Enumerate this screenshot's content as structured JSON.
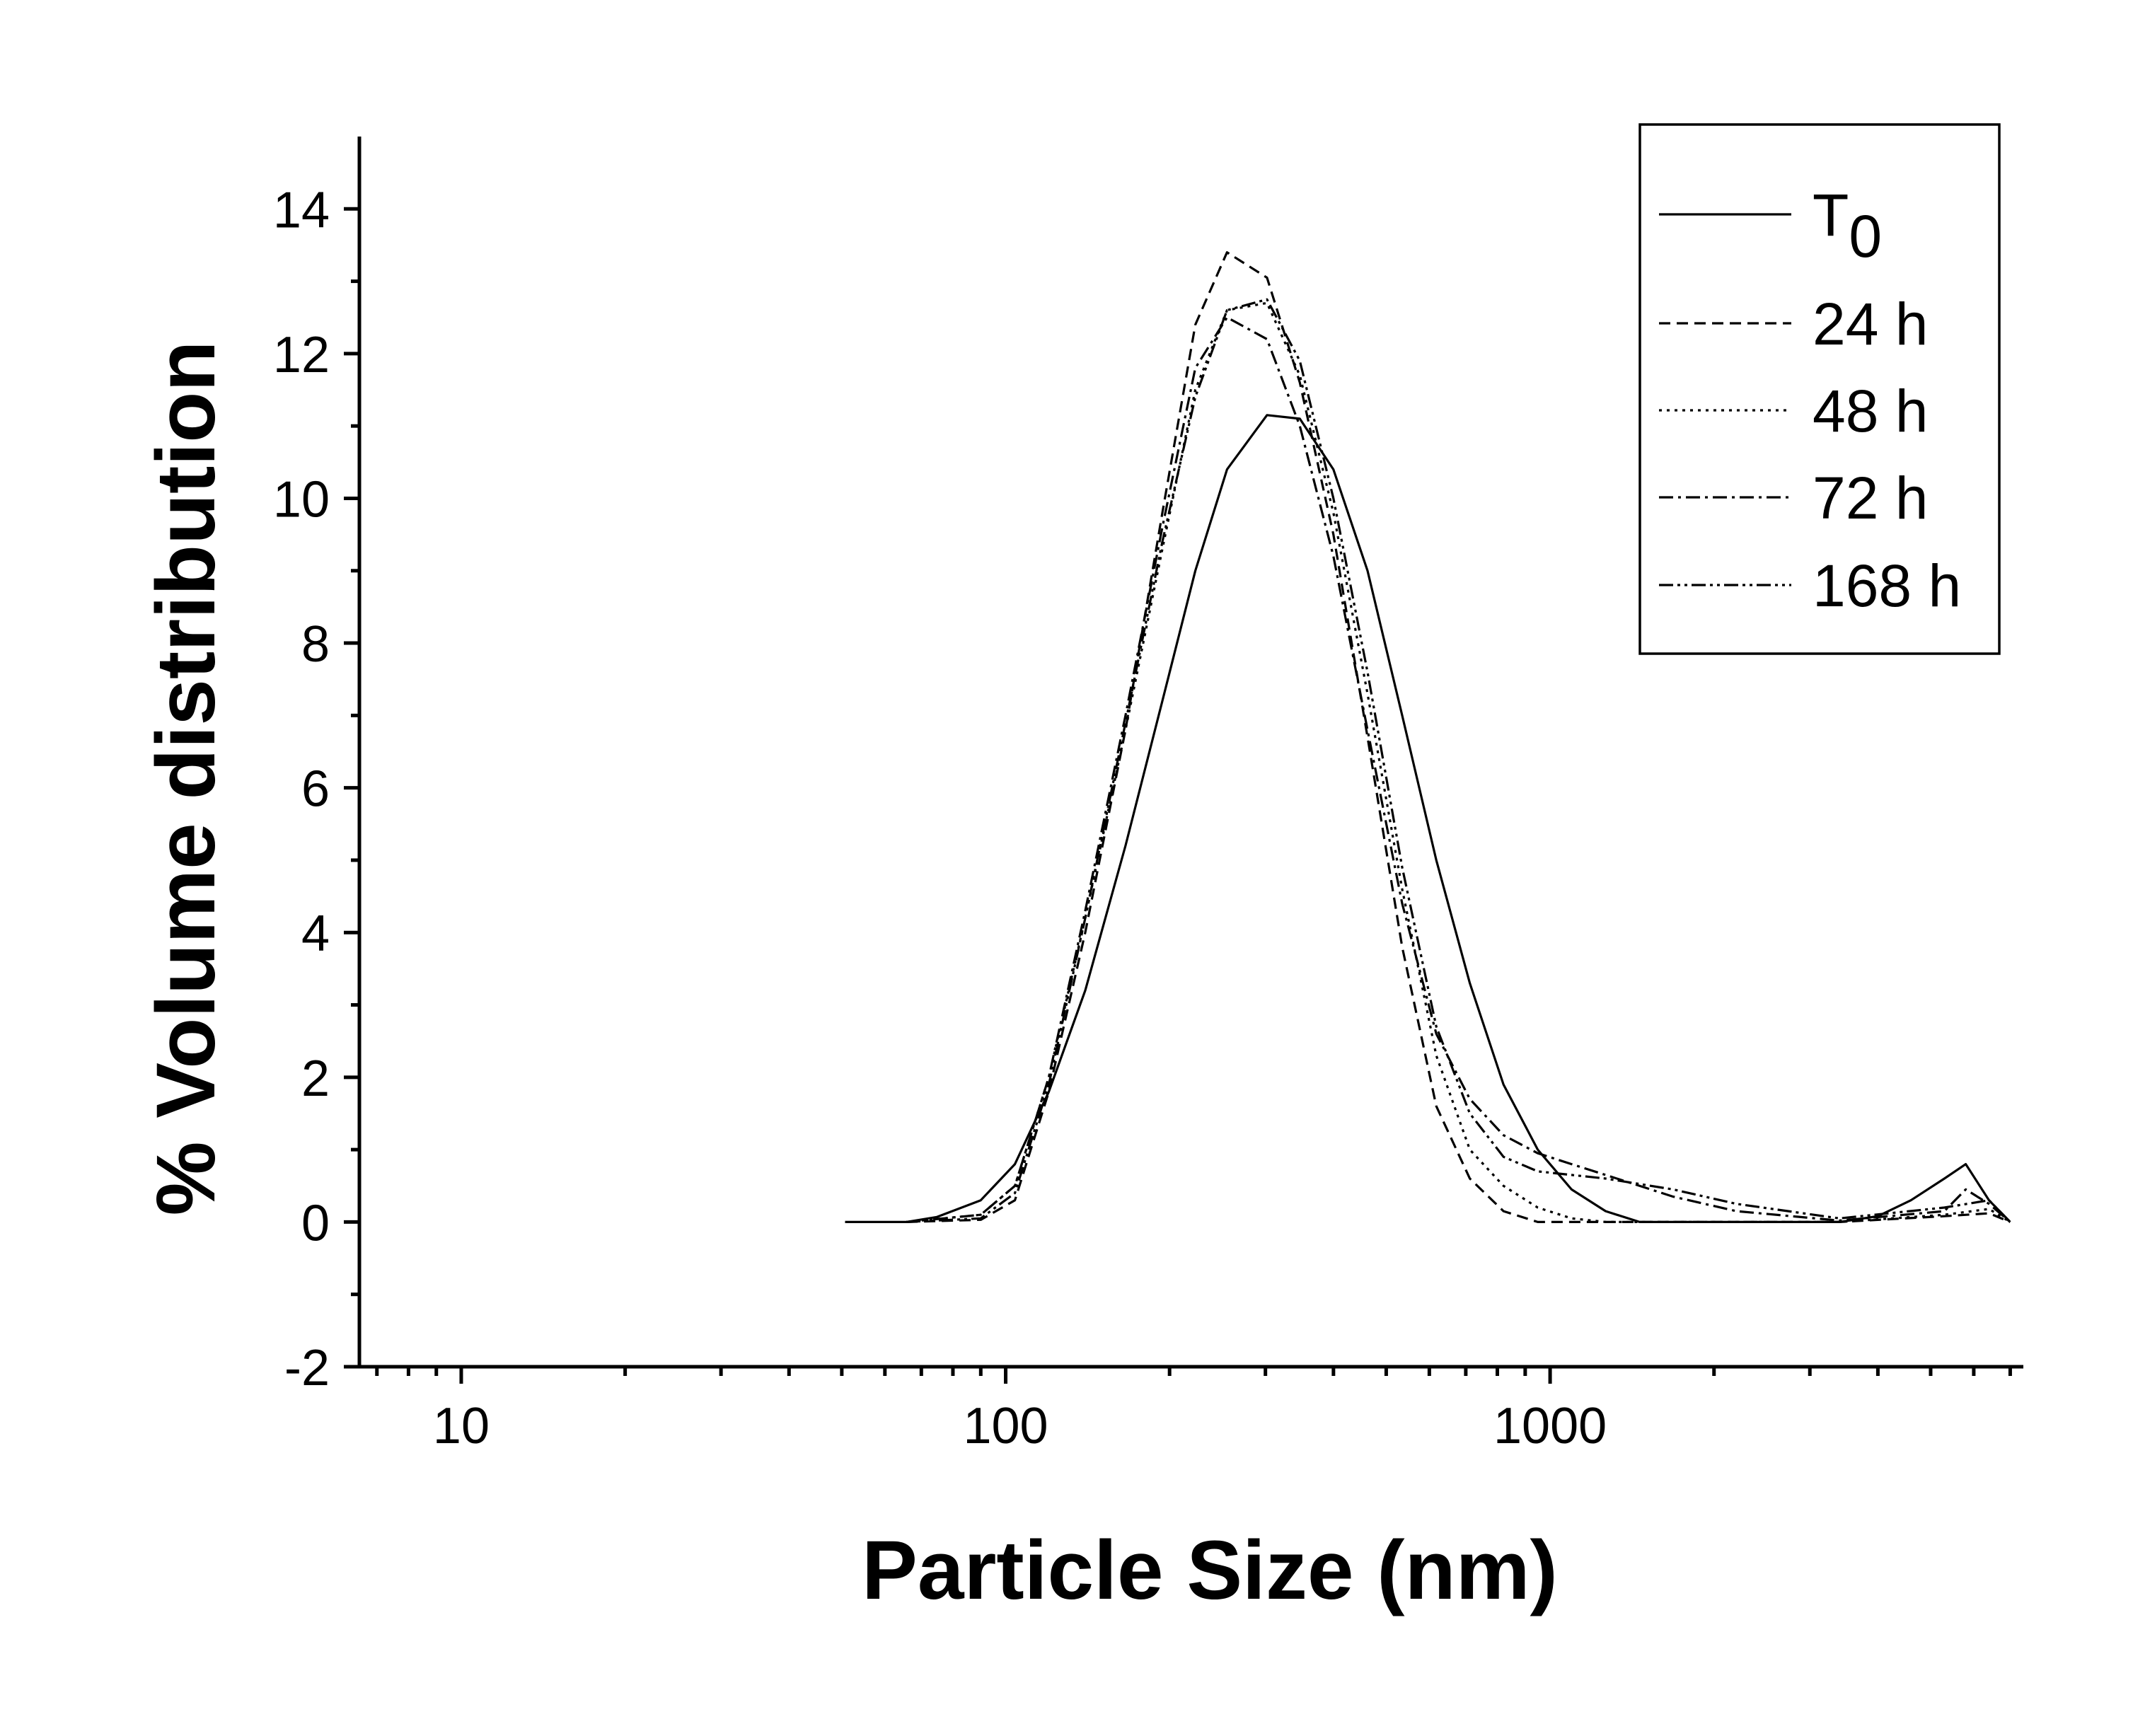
{
  "chart_data": {
    "type": "line",
    "title": "",
    "xlabel": "Particle Size (nm)",
    "ylabel": "% Volume distribution",
    "x_scale": "log",
    "xlim": [
      6.5,
      7400
    ],
    "ylim": [
      -2,
      15
    ],
    "x_ticks": [
      10,
      100,
      1000
    ],
    "x_tick_labels": [
      "10",
      "100",
      "1000"
    ],
    "y_ticks": [
      -2,
      0,
      2,
      4,
      6,
      8,
      10,
      12,
      14
    ],
    "y_tick_labels": [
      "-2",
      "0",
      "2",
      "4",
      "6",
      "8",
      "10",
      "12",
      "14"
    ],
    "grid": false,
    "legend_position": "top-right",
    "series": [
      {
        "name": "T",
        "name_subscript": "0",
        "dash": "none",
        "x": [
          50.7,
          65.7,
          74.8,
          90,
          104,
          120,
          140,
          166,
          194,
          223,
          255,
          302,
          347,
          400,
          462,
          535,
          618,
          712,
          821,
          949,
          1095,
          1265,
          1460,
          1683,
          3400,
          4000,
          4600,
          5300,
          5800,
          6400,
          7000
        ],
        "y": [
          0,
          0,
          0.07,
          0.3,
          0.8,
          1.8,
          3.2,
          5.2,
          7.2,
          9.0,
          10.4,
          11.15,
          11.1,
          10.4,
          9.0,
          7.0,
          5.0,
          3.3,
          1.9,
          1.0,
          0.45,
          0.15,
          0,
          0,
          0,
          0.08,
          0.3,
          0.6,
          0.8,
          0.3,
          0
        ]
      },
      {
        "name": "24 h",
        "dash": "16 9",
        "x": [
          65.7,
          90,
          104,
          120,
          140,
          166,
          194,
          223,
          255,
          302,
          347,
          400,
          462,
          535,
          618,
          712,
          821,
          949,
          1095,
          1265,
          3400,
          5300,
          6400,
          7000
        ],
        "y": [
          0,
          0.03,
          0.3,
          1.8,
          4.0,
          6.8,
          9.8,
          12.4,
          13.4,
          13.05,
          11.6,
          9.5,
          6.7,
          3.8,
          1.6,
          0.6,
          0.15,
          0,
          0,
          0,
          0,
          0.08,
          0.12,
          0
        ]
      },
      {
        "name": "48 h",
        "dash": "4 7",
        "x": [
          65.7,
          90,
          104,
          120,
          140,
          166,
          194,
          223,
          255,
          302,
          347,
          400,
          462,
          535,
          618,
          712,
          821,
          949,
          1095,
          1265,
          1683,
          3400,
          5300,
          6400,
          7000
        ],
        "y": [
          0,
          0.1,
          0.5,
          2.0,
          4.2,
          6.8,
          9.3,
          11.5,
          12.6,
          12.7,
          11.7,
          9.8,
          7.3,
          4.6,
          2.3,
          1.0,
          0.5,
          0.2,
          0.05,
          0,
          0,
          0,
          0.1,
          0.18,
          0
        ]
      },
      {
        "name": "72 h",
        "dash": "20 7 4 7",
        "x": [
          65.7,
          90,
          104,
          120,
          140,
          166,
          194,
          223,
          255,
          302,
          347,
          400,
          462,
          535,
          618,
          712,
          821,
          949,
          1095,
          1265,
          1683,
          2200,
          3400,
          5300,
          5800,
          6400,
          7000
        ],
        "y": [
          0,
          0.1,
          0.5,
          2.0,
          4.3,
          7.0,
          9.6,
          11.8,
          12.5,
          12.2,
          11.0,
          9.2,
          6.8,
          4.4,
          2.6,
          1.7,
          1.2,
          0.95,
          0.8,
          0.65,
          0.35,
          0.15,
          0.02,
          0.15,
          0.45,
          0.25,
          0
        ]
      },
      {
        "name": "168 h",
        "dash": "20 6 4 6 4 6",
        "x": [
          65.7,
          90,
          104,
          120,
          140,
          166,
          194,
          223,
          255,
          302,
          347,
          400,
          462,
          535,
          618,
          712,
          821,
          949,
          1095,
          1265,
          1683,
          2200,
          3400,
          5300,
          6400,
          7000
        ],
        "y": [
          0,
          0.05,
          0.4,
          1.9,
          4.2,
          6.9,
          9.4,
          11.4,
          12.6,
          12.75,
          11.9,
          10.0,
          7.6,
          4.9,
          2.7,
          1.5,
          0.9,
          0.7,
          0.65,
          0.6,
          0.45,
          0.25,
          0.05,
          0.2,
          0.3,
          0
        ]
      }
    ]
  }
}
